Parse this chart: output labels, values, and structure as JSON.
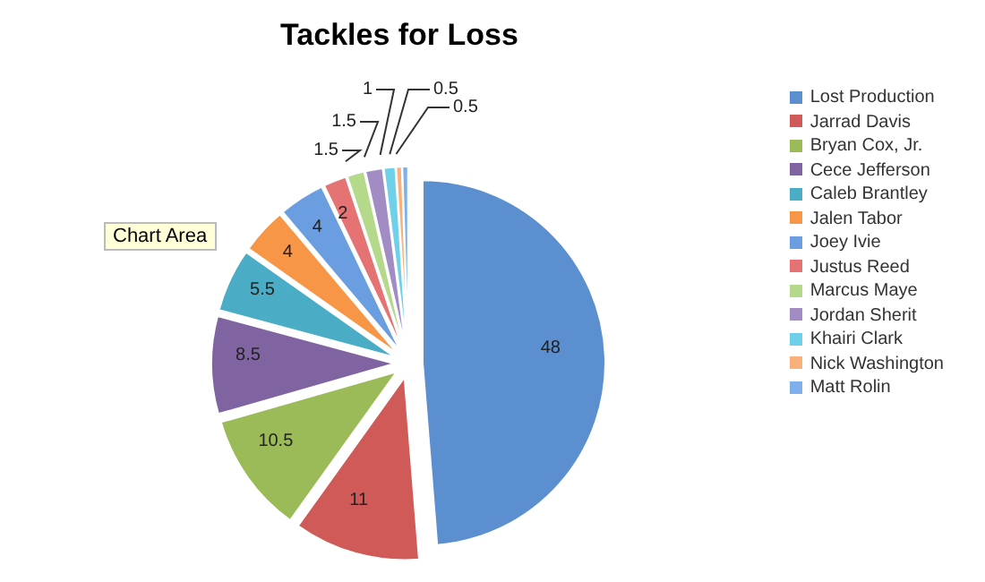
{
  "chart_data": {
    "type": "pie",
    "title": "Tackles for Loss",
    "categories": [
      "Lost Production",
      "Jarrad Davis",
      "Bryan Cox, Jr.",
      "Cece Jefferson",
      "Caleb Brantley",
      "Jalen Tabor",
      "Joey Ivie",
      "Justus Reed",
      "Marcus Maye",
      "Jordan Sherit",
      "Khairi Clark",
      "Nick Washington",
      "Matt Rolin"
    ],
    "values": [
      48,
      11,
      10.5,
      8.5,
      5.5,
      4,
      4,
      2,
      1.5,
      1.5,
      1,
      0.5,
      0.5
    ],
    "colors": [
      "#5b8fcf",
      "#d05a57",
      "#9bbb59",
      "#8064a2",
      "#4bacc6",
      "#f79646",
      "#6a9ee0",
      "#e57373",
      "#b5d98a",
      "#a18cc4",
      "#6fd0ea",
      "#f9b07a",
      "#7fb0ec"
    ],
    "data_labels": true,
    "legend": "right",
    "annotations": [
      "Chart Area"
    ]
  }
}
